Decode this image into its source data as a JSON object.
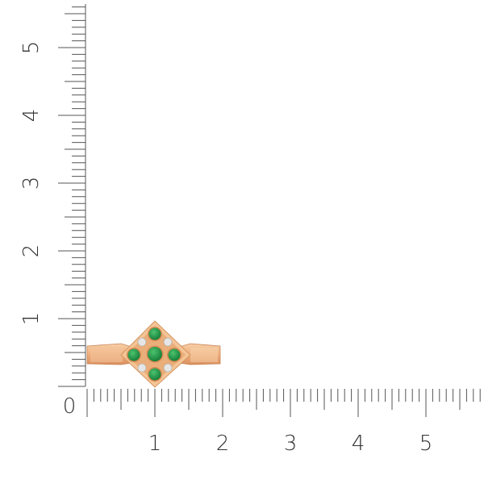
{
  "rulers": {
    "unit": "cm",
    "horizontal_labels": [
      "0",
      "1",
      "2",
      "3",
      "4",
      "5"
    ],
    "vertical_labels": [
      "1",
      "2",
      "3",
      "4",
      "5"
    ]
  },
  "product": {
    "type": "ring",
    "metal_color": "#f2b98a",
    "gem_color": "#1f9a45",
    "accent_stone_color": "#e6e6e6",
    "center_stones": 5,
    "accent_stones": 4
  }
}
